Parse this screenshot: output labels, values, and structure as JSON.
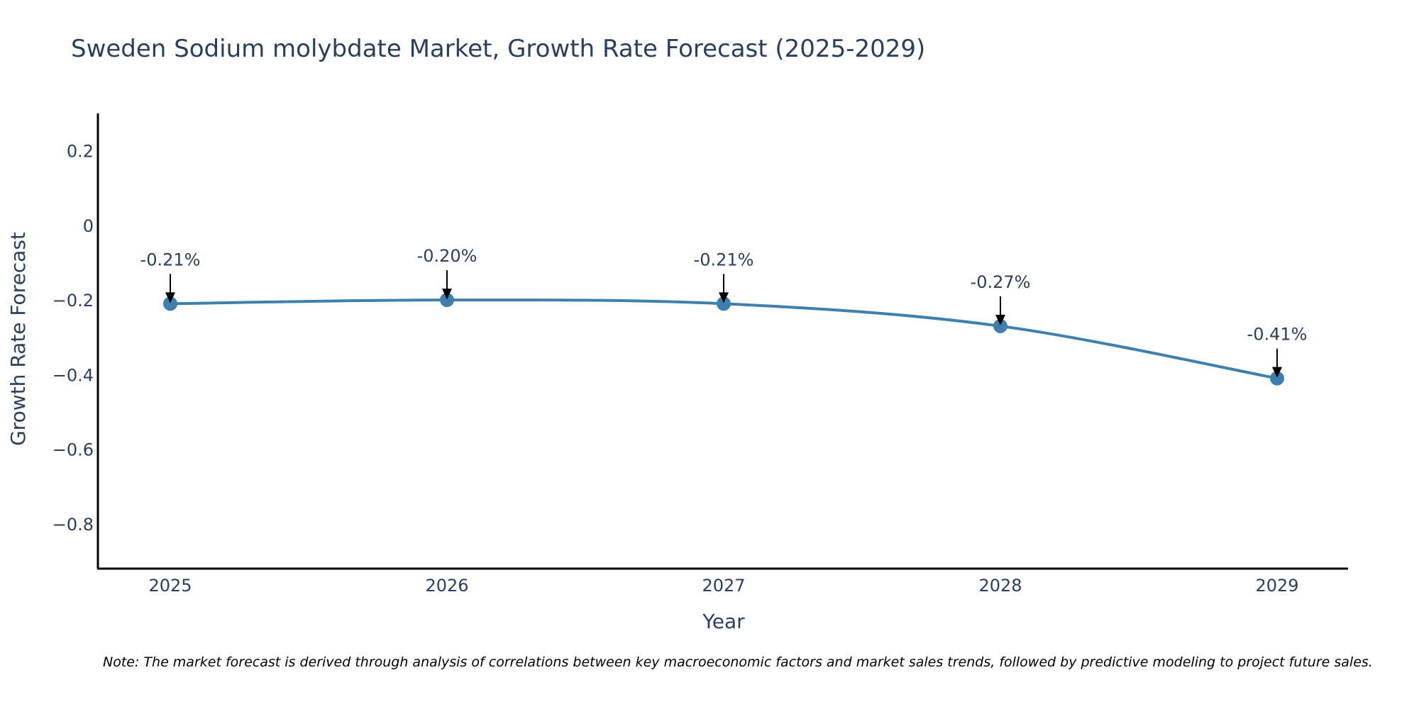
{
  "chart_data": {
    "type": "line",
    "title": "Sweden Sodium molybdate Market, Growth Rate Forecast (2025-2029)",
    "xlabel": "Year",
    "ylabel": "Growth Rate Forecast",
    "categories": [
      "2025",
      "2026",
      "2027",
      "2028",
      "2029"
    ],
    "series": [
      {
        "name": "Growth Rate Forecast",
        "values": [
          -0.21,
          -0.2,
          -0.21,
          -0.27,
          -0.41
        ]
      }
    ],
    "data_labels": [
      "-0.21%",
      "-0.20%",
      "-0.21%",
      "-0.27%",
      "-0.41%"
    ],
    "ylim": [
      -0.92,
      0.3
    ],
    "yticks": [
      0.2,
      0,
      -0.2,
      -0.4,
      -0.6,
      -0.8
    ],
    "ytick_labels": [
      "0.2",
      "0",
      "−0.2",
      "−0.4",
      "−0.6",
      "−0.8"
    ],
    "grid": false,
    "line_color": "#3f7fad",
    "note": "Note: The market forecast is derived through analysis of correlations between key macroeconomic factors and market sales trends, followed by predictive modeling to project future sales."
  }
}
